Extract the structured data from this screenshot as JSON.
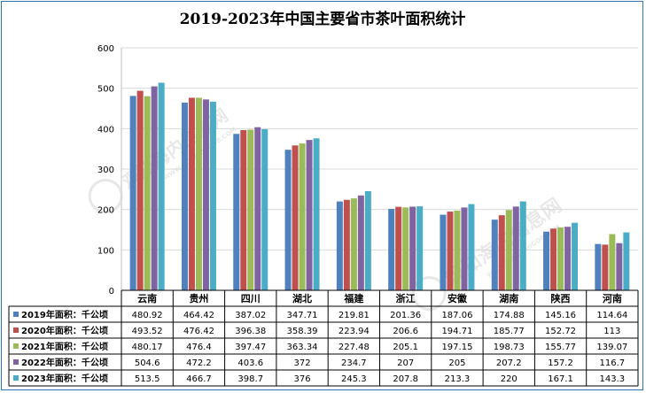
{
  "chart_data": {
    "type": "bar",
    "title": "2019-2023年中国主要省市茶叶面积统计",
    "categories": [
      "云南",
      "贵州",
      "四川",
      "湖北",
      "福建",
      "浙江",
      "安徽",
      "湖南",
      "陕西",
      "河南"
    ],
    "ylim": [
      0,
      600
    ],
    "yticks": [
      0,
      100,
      200,
      300,
      400,
      500,
      600
    ],
    "grid": true,
    "legend": "data-table",
    "series": [
      {
        "name": "2019年面积：千公顷",
        "color": "#4f81bd",
        "values": [
          480.92,
          464.42,
          387.02,
          347.71,
          219.81,
          201.36,
          187.06,
          174.88,
          145.16,
          114.64
        ],
        "labels": [
          "480.92",
          "464.42",
          "387.02",
          "347.71",
          "219.81",
          "201.36",
          "187.06",
          "174.88",
          "145.16",
          "114.64"
        ]
      },
      {
        "name": "2020年面积：千公顷",
        "color": "#c0504d",
        "values": [
          493.52,
          476.42,
          396.38,
          358.39,
          223.94,
          206.6,
          194.71,
          185.77,
          152.72,
          113
        ],
        "labels": [
          "493.52",
          "476.42",
          "396.38",
          "358.39",
          "223.94",
          "206.6",
          "194.71",
          "185.77",
          "152.72",
          "113"
        ]
      },
      {
        "name": "2021年面积：千公顷",
        "color": "#9bbb59",
        "values": [
          480.17,
          476.4,
          397.47,
          363.34,
          227.48,
          205.1,
          197.15,
          198.73,
          155.77,
          139.07
        ],
        "labels": [
          "480.17",
          "476.4",
          "397.47",
          "363.34",
          "227.48",
          "205.1",
          "197.15",
          "198.73",
          "155.77",
          "139.07"
        ]
      },
      {
        "name": "2022年面积：千公顷",
        "color": "#8064a2",
        "values": [
          504.6,
          472.2,
          403.6,
          372,
          234.7,
          207,
          205,
          207.2,
          157.2,
          116.7
        ],
        "labels": [
          "504.6",
          "472.2",
          "403.6",
          "372",
          "234.7",
          "207",
          "205",
          "207.2",
          "157.2",
          "116.7"
        ]
      },
      {
        "name": "2023年面积：千公顷",
        "color": "#4bacc6",
        "values": [
          513.5,
          466.7,
          398.7,
          376,
          245.3,
          207.8,
          213.3,
          220,
          167.1,
          143.3
        ],
        "labels": [
          "513.5",
          "466.7",
          "398.7",
          "376",
          "245.3",
          "207.8",
          "213.3",
          "220",
          "167.1",
          "143.3"
        ]
      }
    ]
  },
  "watermark": {
    "text": "观知海内信息网",
    "url": "WWW.GUANZHIGOB.COM"
  }
}
